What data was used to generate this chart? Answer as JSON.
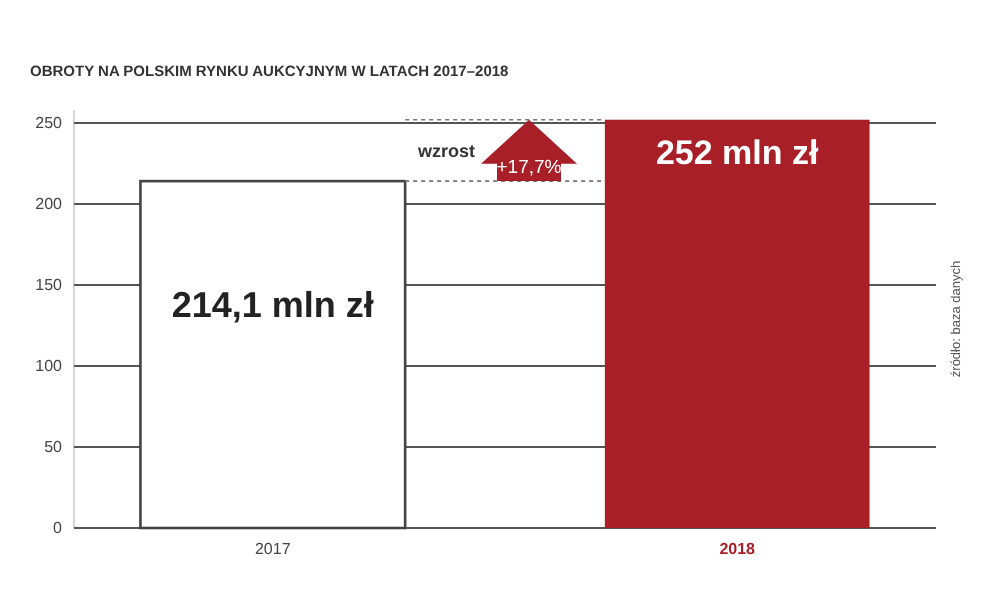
{
  "chart_data": {
    "type": "bar",
    "title": "OBROTY NA POLSKIM RYNKU AUKCYJNYM W LATACH 2017–2018",
    "categories": [
      "2017",
      "2018"
    ],
    "values": [
      214.1,
      252
    ],
    "colors": [
      "#ffffff",
      "#a91f28"
    ],
    "value_labels": [
      "214,1 mln zł",
      "252 mln zł"
    ],
    "ylim": [
      0,
      258
    ],
    "yticks": [
      0,
      50,
      100,
      150,
      200,
      250
    ],
    "grid": "y",
    "ref_lines": [
      {
        "axis": "y",
        "value": 214.1,
        "line_style": "dotted"
      },
      {
        "axis": "y",
        "value": 252,
        "line_style": "dotted"
      }
    ],
    "annotations": [
      "wzrost",
      "+17,7%",
      "źródło: baza danych"
    ]
  }
}
